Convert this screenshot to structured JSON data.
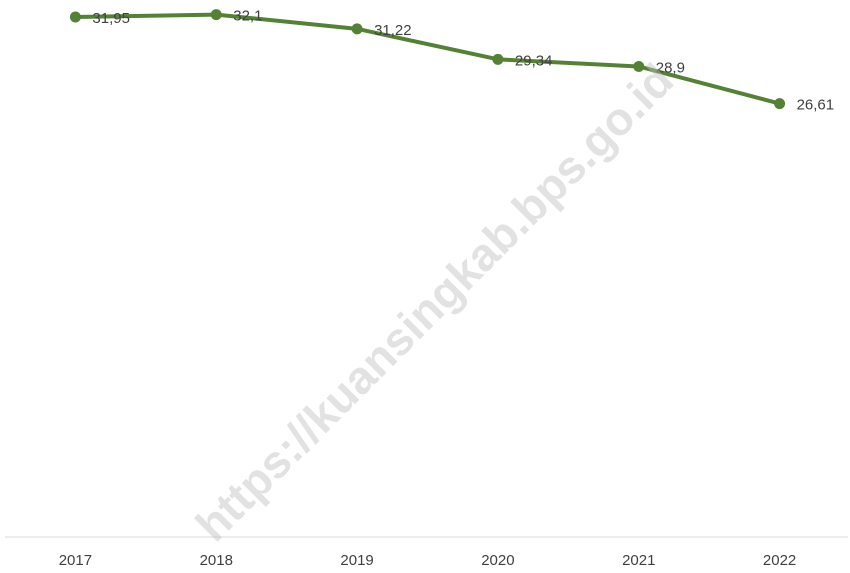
{
  "chart_data": {
    "type": "line",
    "categories": [
      "2017",
      "2018",
      "2019",
      "2020",
      "2021",
      "2022"
    ],
    "series": [
      {
        "color": "#548235",
        "values": [
          31.95,
          32.1,
          31.22,
          29.34,
          28.9,
          26.61
        ],
        "value_labels": [
          "31,95",
          "32,1",
          "31,22",
          "29,34",
          "28,9",
          "26,61"
        ]
      }
    ],
    "ylim": [
      0,
      33
    ]
  },
  "watermark": "https://kuansingkab.bps.go.id"
}
